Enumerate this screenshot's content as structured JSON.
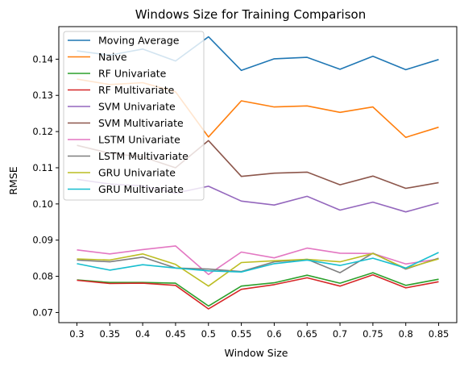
{
  "chart_data": {
    "type": "line",
    "title": "Windows Size for Training Comparison",
    "xlabel": "Window Size",
    "ylabel": "RMSE",
    "x": [
      0.3,
      0.35,
      0.4,
      0.45,
      0.5,
      0.55,
      0.6,
      0.65,
      0.7,
      0.75,
      0.8,
      0.85
    ],
    "x_tick_labels": [
      "0.3",
      "0.35",
      "0.4",
      "0.45",
      "0.5",
      "0.55",
      "0.6",
      "0.65",
      "0.7",
      "0.75",
      "0.8",
      "0.85"
    ],
    "y_ticks": [
      0.07,
      0.08,
      0.09,
      0.1,
      0.11,
      0.12,
      0.13,
      0.14
    ],
    "y_tick_labels": [
      "0.07",
      "0.08",
      "0.09",
      "0.10",
      "0.11",
      "0.12",
      "0.13",
      "0.14"
    ],
    "ylim": [
      0.0672,
      0.149
    ],
    "grid": false,
    "legend_position": "top-left",
    "series": [
      {
        "name": "Moving Average",
        "color": "#1f77b4",
        "values": [
          0.1423,
          0.1411,
          0.1428,
          0.1395,
          0.1462,
          0.1369,
          0.1401,
          0.1405,
          0.1372,
          0.1408,
          0.1371,
          0.1399
        ]
      },
      {
        "name": "Naive",
        "color": "#ff7f0e",
        "values": [
          0.1345,
          0.133,
          0.1335,
          0.131,
          0.1185,
          0.1285,
          0.1268,
          0.1271,
          0.1253,
          0.1268,
          0.1184,
          0.1212
        ]
      },
      {
        "name": "RF Univariate",
        "color": "#2ca02c",
        "values": [
          0.079,
          0.0783,
          0.0783,
          0.0781,
          0.0718,
          0.0773,
          0.0782,
          0.0803,
          0.0781,
          0.081,
          0.0775,
          0.0792
        ]
      },
      {
        "name": "RF Multivariate",
        "color": "#d62728",
        "values": [
          0.0789,
          0.078,
          0.0781,
          0.0775,
          0.071,
          0.0764,
          0.0777,
          0.0796,
          0.0773,
          0.0804,
          0.0768,
          0.0785
        ]
      },
      {
        "name": "SVM Univariate",
        "color": "#9467bd",
        "values": [
          0.1068,
          0.1055,
          0.105,
          0.103,
          0.1049,
          0.1008,
          0.0997,
          0.1021,
          0.0983,
          0.1005,
          0.0978,
          0.1003
        ]
      },
      {
        "name": "SVM Multivariate",
        "color": "#8c564b",
        "values": [
          0.1162,
          0.114,
          0.113,
          0.11,
          0.1175,
          0.1076,
          0.1085,
          0.1088,
          0.1053,
          0.1077,
          0.1043,
          0.1059
        ]
      },
      {
        "name": "LSTM Univariate",
        "color": "#e377c2",
        "values": [
          0.0873,
          0.0862,
          0.0874,
          0.0884,
          0.0805,
          0.0867,
          0.0851,
          0.0878,
          0.0864,
          0.0863,
          0.0834,
          0.0848
        ]
      },
      {
        "name": "LSTM Multivariate",
        "color": "#7f7f7f",
        "values": [
          0.0845,
          0.084,
          0.0853,
          0.0823,
          0.082,
          0.0813,
          0.084,
          0.0847,
          0.081,
          0.0864,
          0.082,
          0.085
        ]
      },
      {
        "name": "GRU Univariate",
        "color": "#bcbd22",
        "values": [
          0.0848,
          0.0845,
          0.0862,
          0.0833,
          0.0773,
          0.0838,
          0.0843,
          0.0847,
          0.084,
          0.0863,
          0.0822,
          0.0848
        ]
      },
      {
        "name": "GRU Multivariate",
        "color": "#17becf",
        "values": [
          0.0835,
          0.0817,
          0.0832,
          0.0823,
          0.0815,
          0.0812,
          0.0835,
          0.0845,
          0.083,
          0.085,
          0.0823,
          0.0866
        ]
      }
    ]
  }
}
